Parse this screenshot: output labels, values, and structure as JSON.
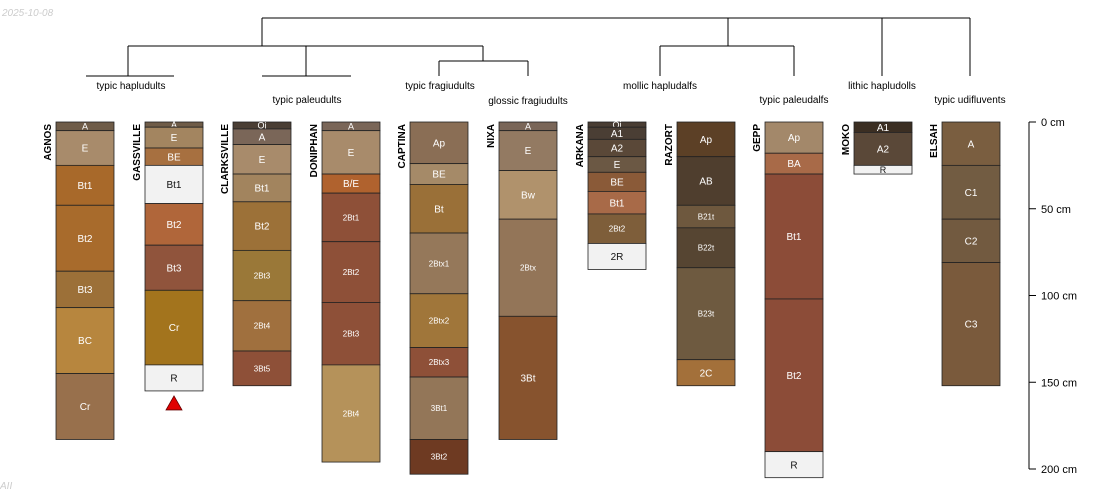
{
  "header": {
    "date": "2025-10-08",
    "footer": "AII"
  },
  "depth_axis": {
    "unit": "cm",
    "max_depth": 200,
    "ticks": [
      {
        "value": 0,
        "label": "0 cm"
      },
      {
        "value": 50,
        "label": "50 cm"
      },
      {
        "value": 100,
        "label": "100 cm"
      },
      {
        "value": 150,
        "label": "150 cm"
      },
      {
        "value": 200,
        "label": "200 cm"
      }
    ]
  },
  "taxa": [
    {
      "id": "t1",
      "label": "typic hapludults"
    },
    {
      "id": "t2",
      "label": "typic paleudults"
    },
    {
      "id": "t3",
      "label": "typic fragiudults"
    },
    {
      "id": "t4",
      "label": "glossic fragiudults"
    },
    {
      "id": "t5",
      "label": "mollic hapludalfs"
    },
    {
      "id": "t6",
      "label": "typic paleudalfs"
    },
    {
      "id": "t7",
      "label": "lithic hapludolls"
    },
    {
      "id": "t8",
      "label": "typic udifluvents"
    }
  ],
  "profiles": [
    {
      "name": "AGNOS",
      "taxon": "t1",
      "horizons": [
        {
          "name": "A",
          "top": 0,
          "bottom": 5,
          "color": "#6f5c48"
        },
        {
          "name": "E",
          "top": 5,
          "bottom": 25,
          "color": "#a88b6b"
        },
        {
          "name": "Bt1",
          "top": 25,
          "bottom": 48,
          "color": "#a8692a"
        },
        {
          "name": "Bt2",
          "top": 48,
          "bottom": 86,
          "color": "#a86b2c"
        },
        {
          "name": "Bt3",
          "top": 86,
          "bottom": 107,
          "color": "#9c7038"
        },
        {
          "name": "BC",
          "top": 107,
          "bottom": 145,
          "color": "#b7863e"
        },
        {
          "name": "Cr",
          "top": 145,
          "bottom": 183,
          "color": "#98704c"
        }
      ]
    },
    {
      "name": "GASSVILLE",
      "taxon": "t1",
      "lithic": true,
      "horizons": [
        {
          "name": "A",
          "top": 0,
          "bottom": 3,
          "color": "#6f5c48"
        },
        {
          "name": "E",
          "top": 3,
          "bottom": 15,
          "color": "#a38560"
        },
        {
          "name": "BE",
          "top": 15,
          "bottom": 25,
          "color": "#a77040"
        },
        {
          "name": "Bt1",
          "top": 25,
          "bottom": 47,
          "color": "#f2f2f2"
        },
        {
          "name": "Bt2",
          "top": 47,
          "bottom": 71,
          "color": "#b0663a"
        },
        {
          "name": "Bt3",
          "top": 71,
          "bottom": 97,
          "color": "#90543c"
        },
        {
          "name": "Cr",
          "top": 97,
          "bottom": 140,
          "color": "#a3741d"
        },
        {
          "name": "R",
          "top": 140,
          "bottom": 155,
          "color": "#f2f2f2"
        }
      ]
    },
    {
      "name": "CLARKSVILLE",
      "taxon": "t2",
      "horizons": [
        {
          "name": "Oi",
          "top": 0,
          "bottom": 4,
          "color": "#4a3e34"
        },
        {
          "name": "A",
          "top": 4,
          "bottom": 13,
          "color": "#7a6658"
        },
        {
          "name": "E",
          "top": 13,
          "bottom": 30,
          "color": "#a88b6b"
        },
        {
          "name": "Bt1",
          "top": 30,
          "bottom": 46,
          "color": "#a2845e"
        },
        {
          "name": "Bt2",
          "top": 46,
          "bottom": 74,
          "color": "#9c7138"
        },
        {
          "name": "2Bt3",
          "top": 74,
          "bottom": 103,
          "color": "#9a7838"
        },
        {
          "name": "2Bt4",
          "top": 103,
          "bottom": 132,
          "color": "#a0703e"
        },
        {
          "name": "3Bt5",
          "top": 132,
          "bottom": 152,
          "color": "#8e5038"
        }
      ]
    },
    {
      "name": "DONIPHAN",
      "taxon": "t2",
      "horizons": [
        {
          "name": "A",
          "top": 0,
          "bottom": 5,
          "color": "#7a6658"
        },
        {
          "name": "E",
          "top": 5,
          "bottom": 30,
          "color": "#a88b6b"
        },
        {
          "name": "B/E",
          "top": 30,
          "bottom": 41,
          "color": "#b0622e"
        },
        {
          "name": "2Bt1",
          "top": 41,
          "bottom": 69,
          "color": "#8e5038"
        },
        {
          "name": "2Bt2",
          "top": 69,
          "bottom": 104,
          "color": "#8e5038"
        },
        {
          "name": "2Bt3",
          "top": 104,
          "bottom": 140,
          "color": "#8e5038"
        },
        {
          "name": "2Bt4",
          "top": 140,
          "bottom": 196,
          "color": "#b5925a"
        }
      ]
    },
    {
      "name": "CAPTINA",
      "taxon": "t3",
      "horizons": [
        {
          "name": "Ap",
          "top": 0,
          "bottom": 24,
          "color": "#8a6e55"
        },
        {
          "name": "BE",
          "top": 24,
          "bottom": 36,
          "color": "#a58a68"
        },
        {
          "name": "Bt",
          "top": 36,
          "bottom": 64,
          "color": "#9a7038"
        },
        {
          "name": "2Btx1",
          "top": 64,
          "bottom": 99,
          "color": "#95785a"
        },
        {
          "name": "2Btx2",
          "top": 99,
          "bottom": 130,
          "color": "#a0763a"
        },
        {
          "name": "2Btx3",
          "top": 130,
          "bottom": 147,
          "color": "#8e5038"
        },
        {
          "name": "3Bt1",
          "top": 147,
          "bottom": 183,
          "color": "#937658"
        },
        {
          "name": "3Bt2",
          "top": 183,
          "bottom": 203,
          "color": "#6e3a22"
        }
      ]
    },
    {
      "name": "NIXA",
      "taxon": "t4",
      "horizons": [
        {
          "name": "A",
          "top": 0,
          "bottom": 5,
          "color": "#7a6658"
        },
        {
          "name": "E",
          "top": 5,
          "bottom": 28,
          "color": "#937a62"
        },
        {
          "name": "Bw",
          "top": 28,
          "bottom": 56,
          "color": "#b0926c"
        },
        {
          "name": "2Btx",
          "top": 56,
          "bottom": 112,
          "color": "#937558"
        },
        {
          "name": "3Bt",
          "top": 112,
          "bottom": 183,
          "color": "#87532e"
        }
      ]
    },
    {
      "name": "ARKANA",
      "taxon": "t5",
      "horizons": [
        {
          "name": "Oi",
          "top": 0,
          "bottom": 3,
          "color": "#4a3e34"
        },
        {
          "name": "A1",
          "top": 3,
          "bottom": 10,
          "color": "#4a3e34"
        },
        {
          "name": "A2",
          "top": 10,
          "bottom": 20,
          "color": "#5a4838"
        },
        {
          "name": "E",
          "top": 20,
          "bottom": 29,
          "color": "#6b5844"
        },
        {
          "name": "BE",
          "top": 29,
          "bottom": 40,
          "color": "#8a5a38"
        },
        {
          "name": "Bt1",
          "top": 40,
          "bottom": 53,
          "color": "#a86a48"
        },
        {
          "name": "2Bt2",
          "top": 53,
          "bottom": 70,
          "color": "#7e5e3a"
        },
        {
          "name": "2R",
          "top": 70,
          "bottom": 85,
          "color": "#f2f2f2"
        }
      ]
    },
    {
      "name": "RAZORT",
      "taxon": "t5",
      "horizons": [
        {
          "name": "Ap",
          "top": 0,
          "bottom": 20,
          "color": "#5c4026"
        },
        {
          "name": "AB",
          "top": 20,
          "bottom": 48,
          "color": "#4f3e2e"
        },
        {
          "name": "B21t",
          "top": 48,
          "bottom": 61,
          "color": "#6e583e"
        },
        {
          "name": "B22t",
          "top": 61,
          "bottom": 84,
          "color": "#564532"
        },
        {
          "name": "B23t",
          "top": 84,
          "bottom": 137,
          "color": "#6e5a40"
        },
        {
          "name": "2C",
          "top": 137,
          "bottom": 152,
          "color": "#a3703a"
        }
      ]
    },
    {
      "name": "GEPP",
      "taxon": "t6",
      "horizons": [
        {
          "name": "Ap",
          "top": 0,
          "bottom": 18,
          "color": "#a3886a"
        },
        {
          "name": "BA",
          "top": 18,
          "bottom": 30,
          "color": "#a86a48"
        },
        {
          "name": "Bt1",
          "top": 30,
          "bottom": 102,
          "color": "#8c4c38"
        },
        {
          "name": "Bt2",
          "top": 102,
          "bottom": 190,
          "color": "#8c4c38"
        },
        {
          "name": "R",
          "top": 190,
          "bottom": 205,
          "color": "#f2f2f2"
        }
      ]
    },
    {
      "name": "MOKO",
      "taxon": "t7",
      "horizons": [
        {
          "name": "A1",
          "top": 0,
          "bottom": 6,
          "color": "#3b2e22"
        },
        {
          "name": "A2",
          "top": 6,
          "bottom": 25,
          "color": "#5a4838"
        },
        {
          "name": "R",
          "top": 25,
          "bottom": 30,
          "color": "#f2f2f2"
        }
      ]
    },
    {
      "name": "ELSAH",
      "taxon": "t8",
      "horizons": [
        {
          "name": "A",
          "top": 0,
          "bottom": 25,
          "color": "#7a5e40"
        },
        {
          "name": "C1",
          "top": 25,
          "bottom": 56,
          "color": "#725c42"
        },
        {
          "name": "C2",
          "top": 56,
          "bottom": 81,
          "color": "#725a40"
        },
        {
          "name": "C3",
          "top": 81,
          "bottom": 152,
          "color": "#7a5a3c"
        }
      ]
    }
  ]
}
